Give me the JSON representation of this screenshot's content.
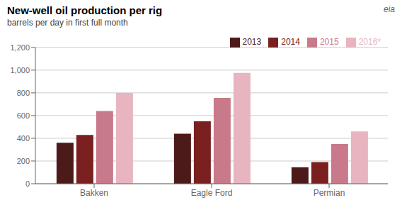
{
  "chart_data": {
    "type": "bar",
    "title": "New-well oil production per rig",
    "subtitle": "barrels per day in first full month",
    "categories": [
      "Bakken",
      "Eagle Ford",
      "Permian"
    ],
    "series": [
      {
        "name": "2013",
        "color": "#4d1a1a",
        "values": [
          360,
          440,
          145
        ]
      },
      {
        "name": "2014",
        "color": "#7a2020",
        "values": [
          430,
          550,
          190
        ]
      },
      {
        "name": "2015",
        "color": "#c97a8a",
        "values": [
          640,
          755,
          350
        ]
      },
      {
        "name": "2016*",
        "color": "#e8b4c0",
        "values": [
          800,
          975,
          460
        ]
      }
    ],
    "ylim": [
      0,
      1200
    ],
    "yticks": [
      0,
      200,
      400,
      600,
      800,
      {
        "value": 1000,
        "label": "1,000"
      },
      {
        "value": 1200,
        "label": "1,200"
      }
    ],
    "grid": true,
    "legend": "top",
    "annotations": [
      "eia"
    ]
  }
}
